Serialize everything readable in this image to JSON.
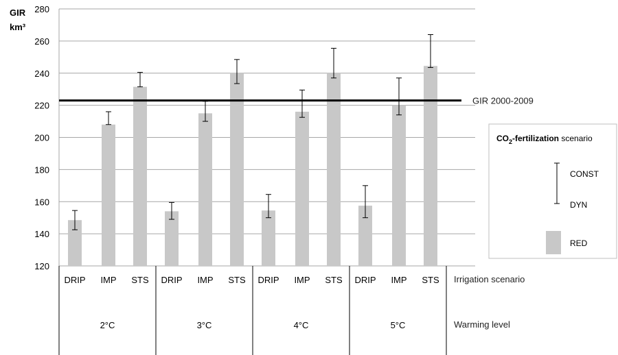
{
  "chart_data": {
    "type": "bar",
    "ylabel_line1": "GIR",
    "ylabel_line2": "km³",
    "ylim": [
      120,
      280
    ],
    "yticks": [
      120,
      140,
      160,
      180,
      200,
      220,
      240,
      260,
      280
    ],
    "grid": true,
    "irrigation_axis_label": "Irrigation scenario",
    "warming_axis_label": "Warming level",
    "irrigation_labels": [
      "DRIP",
      "IMP",
      "STS"
    ],
    "groups": [
      {
        "warming": "2°C",
        "bars": [
          {
            "irrigation": "DRIP",
            "red": 148.5,
            "const": 154.5,
            "dyn": 142.5
          },
          {
            "irrigation": "IMP",
            "red": 208,
            "const": 216,
            "dyn": 208
          },
          {
            "irrigation": "STS",
            "red": 231.5,
            "const": 240.5,
            "dyn": 231.5
          }
        ]
      },
      {
        "warming": "3°C",
        "bars": [
          {
            "irrigation": "DRIP",
            "red": 154,
            "const": 159.5,
            "dyn": 149
          },
          {
            "irrigation": "IMP",
            "red": 215,
            "const": 222.5,
            "dyn": 210
          },
          {
            "irrigation": "STS",
            "red": 240,
            "const": 248.5,
            "dyn": 233.5
          }
        ]
      },
      {
        "warming": "4°C",
        "bars": [
          {
            "irrigation": "DRIP",
            "red": 154.5,
            "const": 164.5,
            "dyn": 150
          },
          {
            "irrigation": "IMP",
            "red": 216,
            "const": 229.5,
            "dyn": 212.5
          },
          {
            "irrigation": "STS",
            "red": 240,
            "const": 255.5,
            "dyn": 237
          }
        ]
      },
      {
        "warming": "5°C",
        "bars": [
          {
            "irrigation": "DRIP",
            "red": 157.5,
            "const": 170,
            "dyn": 150
          },
          {
            "irrigation": "IMP",
            "red": 220,
            "const": 237,
            "dyn": 214
          },
          {
            "irrigation": "STS",
            "red": 244.5,
            "const": 264,
            "dyn": 243.5
          }
        ]
      }
    ],
    "reference_line": {
      "label": "GIR 2000-2009",
      "value": 223
    },
    "legend": {
      "title_prefix": "CO",
      "title_subscript": "2",
      "title_bold_suffix": "-fertilization",
      "title_suffix": " scenario",
      "const_label": "CONST",
      "dyn_label": "DYN",
      "red_label": "RED",
      "placement": "right"
    },
    "colors": {
      "bar": "#c8c8c8",
      "grid": "#a6a6a6",
      "reference_line": "#000000",
      "error_bar": "#000000"
    }
  }
}
